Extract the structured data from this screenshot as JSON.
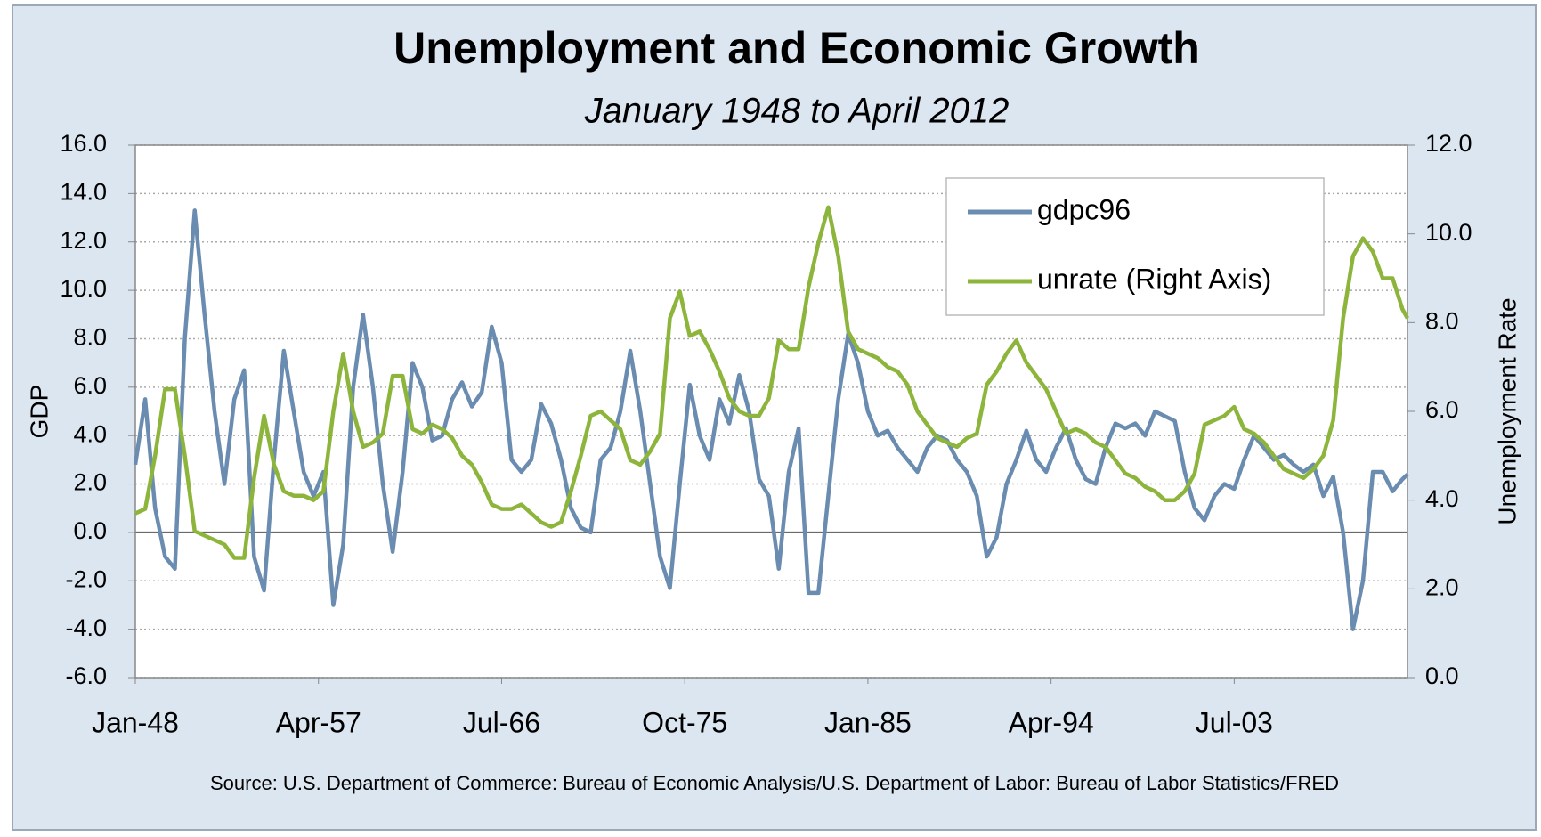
{
  "chart_data": {
    "type": "line",
    "title": "Unemployment and Economic Growth",
    "subtitle": "January 1948 to April 2012",
    "y_label": "GDP",
    "y2_label": "Unemployment Rate",
    "source": "Source: U.S. Department of Commerce: Bureau of Economic Analysis/U.S. Department of Labor: Bureau of Labor Statistics/FRED",
    "x": [
      1948,
      1948.5,
      1949,
      1949.5,
      1950,
      1950.5,
      1951,
      1951.5,
      1952,
      1952.5,
      1953,
      1953.5,
      1954,
      1954.5,
      1955,
      1955.5,
      1956,
      1956.5,
      1957,
      1957.5,
      1958,
      1958.5,
      1959,
      1959.5,
      1960,
      1960.5,
      1961,
      1961.5,
      1962,
      1962.5,
      1963,
      1963.5,
      1964,
      1964.5,
      1965,
      1965.5,
      1966,
      1966.5,
      1967,
      1967.5,
      1968,
      1968.5,
      1969,
      1969.5,
      1970,
      1970.5,
      1971,
      1971.5,
      1972,
      1972.5,
      1973,
      1973.5,
      1974,
      1974.5,
      1975,
      1975.5,
      1976,
      1976.5,
      1977,
      1977.5,
      1978,
      1978.5,
      1979,
      1979.5,
      1980,
      1980.5,
      1981,
      1981.5,
      1982,
      1982.5,
      1983,
      1983.5,
      1984,
      1984.5,
      1985,
      1985.5,
      1986,
      1986.5,
      1987,
      1987.5,
      1988,
      1988.5,
      1989,
      1989.5,
      1990,
      1990.5,
      1991,
      1991.5,
      1992,
      1992.5,
      1993,
      1993.5,
      1994,
      1994.5,
      1995,
      1995.5,
      1996,
      1996.5,
      1997,
      1997.5,
      1998,
      1998.5,
      1999,
      1999.5,
      2000,
      2000.5,
      2001,
      2001.5,
      2002,
      2002.5,
      2003,
      2003.5,
      2004,
      2004.5,
      2005,
      2005.5,
      2006,
      2006.5,
      2007,
      2007.5,
      2008,
      2008.5,
      2009,
      2009.5,
      2010,
      2010.5,
      2011,
      2011.5,
      2012,
      2012.25
    ],
    "xlim": [
      1948,
      2012.25
    ],
    "xticks": [
      {
        "value": 1948,
        "label": "Jan-48"
      },
      {
        "value": 1957.25,
        "label": "Apr-57"
      },
      {
        "value": 1966.5,
        "label": "Jul-66"
      },
      {
        "value": 1975.75,
        "label": "Oct-75"
      },
      {
        "value": 1985,
        "label": "Jan-85"
      },
      {
        "value": 1994.25,
        "label": "Apr-94"
      },
      {
        "value": 2003.5,
        "label": "Jul-03"
      }
    ],
    "ylim": [
      -6,
      16
    ],
    "yticks": [
      {
        "value": -6,
        "label": "-6.0"
      },
      {
        "value": -4,
        "label": "-4.0"
      },
      {
        "value": -2,
        "label": "-2.0"
      },
      {
        "value": 0,
        "label": "0.0"
      },
      {
        "value": 2,
        "label": "2.0"
      },
      {
        "value": 4,
        "label": "4.0"
      },
      {
        "value": 6,
        "label": "6.0"
      },
      {
        "value": 8,
        "label": "8.0"
      },
      {
        "value": 10,
        "label": "10.0"
      },
      {
        "value": 12,
        "label": "12.0"
      },
      {
        "value": 14,
        "label": "14.0"
      },
      {
        "value": 16,
        "label": "16.0"
      }
    ],
    "y2lim": [
      0,
      12
    ],
    "y2ticks": [
      {
        "value": 0,
        "label": "0.0"
      },
      {
        "value": 2,
        "label": "2.0"
      },
      {
        "value": 4,
        "label": "4.0"
      },
      {
        "value": 6,
        "label": "6.0"
      },
      {
        "value": 8,
        "label": "8.0"
      },
      {
        "value": 10,
        "label": "10.0"
      },
      {
        "value": 12,
        "label": "12.0"
      }
    ],
    "grid": true,
    "legend": "top-right",
    "series": [
      {
        "name": "gdpc96",
        "color": "#6a8cb0",
        "values": [
          2.8,
          5.5,
          1.0,
          -1.0,
          -1.5,
          8,
          13.3,
          9,
          5,
          2,
          5.5,
          6.7,
          -1,
          -2.4,
          3,
          7.5,
          5,
          2.5,
          1.5,
          2.5,
          -3,
          -0.5,
          6,
          9,
          6,
          2,
          -0.8,
          2.5,
          7,
          6,
          3.8,
          4,
          5.5,
          6.2,
          5.2,
          5.8,
          8.5,
          7,
          3,
          2.5,
          3,
          5.3,
          4.5,
          3,
          1,
          0.2,
          0,
          3,
          3.5,
          5,
          7.5,
          5,
          2,
          -1,
          -2.3,
          2,
          6.1,
          4,
          3,
          5.5,
          4.5,
          6.5,
          5,
          2.2,
          1.5,
          -1.5,
          2.5,
          4.3,
          -2.5,
          -2.5,
          1.5,
          5.5,
          8.2,
          7,
          5,
          4,
          4.2,
          3.5,
          3,
          2.5,
          3.5,
          4,
          3.8,
          3,
          2.5,
          1.5,
          -1.0,
          -0.2,
          2,
          3,
          4.2,
          3,
          2.5,
          3.5,
          4.3,
          3,
          2.2,
          2,
          3.5,
          4.5,
          4.3,
          4.5,
          4,
          5,
          4.8,
          4.6,
          2.5,
          1,
          0.5,
          1.5,
          2,
          1.8,
          3,
          4,
          3.5,
          3,
          3.2,
          2.8,
          2.5,
          2.8,
          1.5,
          2.3,
          0,
          -4,
          -2,
          2.5,
          2.5,
          1.7,
          2.2,
          2.4
        ]
      },
      {
        "name": "unrate (Right Axis)",
        "color": "#8db53c",
        "axis": "y2",
        "values": [
          3.7,
          3.8,
          5.0,
          6.5,
          6.5,
          5,
          3.3,
          3.2,
          3.1,
          3.0,
          2.7,
          2.7,
          4.5,
          5.9,
          4.8,
          4.2,
          4.1,
          4.1,
          4.0,
          4.2,
          6.0,
          7.3,
          6.0,
          5.2,
          5.3,
          5.5,
          6.8,
          6.8,
          5.6,
          5.5,
          5.7,
          5.6,
          5.4,
          5.0,
          4.8,
          4.4,
          3.9,
          3.8,
          3.8,
          3.9,
          3.7,
          3.5,
          3.4,
          3.5,
          4.2,
          5.0,
          5.9,
          6.0,
          5.8,
          5.6,
          4.9,
          4.8,
          5.1,
          5.5,
          8.1,
          8.7,
          7.7,
          7.8,
          7.4,
          6.9,
          6.3,
          6.0,
          5.9,
          5.9,
          6.3,
          7.6,
          7.4,
          7.4,
          8.8,
          9.8,
          10.6,
          9.5,
          7.8,
          7.4,
          7.3,
          7.2,
          7.0,
          6.9,
          6.6,
          6.0,
          5.7,
          5.4,
          5.3,
          5.2,
          5.4,
          5.5,
          6.6,
          6.9,
          7.3,
          7.6,
          7.1,
          6.8,
          6.5,
          6.0,
          5.5,
          5.6,
          5.5,
          5.3,
          5.2,
          4.9,
          4.6,
          4.5,
          4.3,
          4.2,
          4.0,
          4.0,
          4.2,
          4.6,
          5.7,
          5.8,
          5.9,
          6.1,
          5.6,
          5.5,
          5.3,
          5.0,
          4.7,
          4.6,
          4.5,
          4.7,
          5.0,
          5.8,
          8.1,
          9.5,
          9.9,
          9.6,
          9.0,
          9.0,
          8.3,
          8.1
        ]
      }
    ]
  }
}
